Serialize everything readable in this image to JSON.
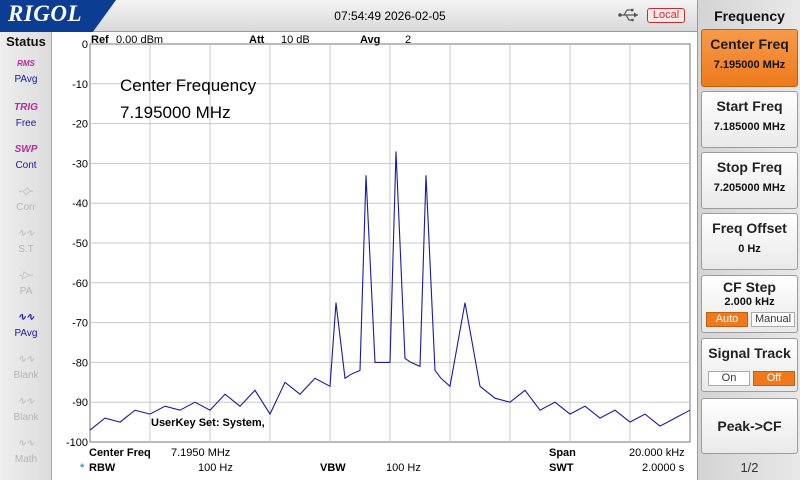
{
  "topbar": {
    "brand": "RIGOL",
    "datetime": "07:54:49 2026-02-05",
    "remote_status": "Local"
  },
  "status_panel": {
    "title": "Status",
    "items": [
      {
        "glyph": "RMS PAvg",
        "label": "PAvg",
        "state": "active"
      },
      {
        "glyph": "TRIG",
        "label": "Free",
        "state": "active"
      },
      {
        "glyph": "SWP",
        "label": "Cont",
        "state": "active"
      },
      {
        "glyph": "corr-icon",
        "label": "Corr",
        "state": "dim"
      },
      {
        "glyph": "st-icon",
        "label": "S.T",
        "state": "dim"
      },
      {
        "glyph": "pa-icon",
        "label": "PA",
        "state": "dim"
      },
      {
        "glyph": "pavg-icon",
        "label": "PAvg",
        "state": "active"
      },
      {
        "glyph": "blank-icon",
        "label": "Blank",
        "state": "dim"
      },
      {
        "glyph": "blank-icon",
        "label": "Blank",
        "state": "dim"
      },
      {
        "glyph": "math-icon",
        "label": "Math",
        "state": "dim"
      }
    ]
  },
  "plot": {
    "ref_label": "Ref",
    "ref_value": "0.00 dBm",
    "att_label": "Att",
    "att_value": "10 dB",
    "avg_label": "Avg",
    "avg_value": "2",
    "overlay_title": "Center Frequency",
    "overlay_value": "7.195000 MHz",
    "userkey_text": "UserKey Set:   System,",
    "bottom": {
      "center_label": "Center Freq",
      "center_value": "7.1950 MHz",
      "span_label": "Span",
      "span_value": "20.000 kHz",
      "rbw_marker": "*",
      "rbw_label": "RBW",
      "rbw_value": "100 Hz",
      "vbw_label": "VBW",
      "vbw_value": "100 Hz",
      "swt_label": "SWT",
      "swt_value": "2.0000 s"
    },
    "trace_color": "#1a1aa0",
    "grid_color": "#c8c8c8"
  },
  "chart_data": {
    "type": "line",
    "title": "",
    "xlabel": "",
    "ylabel": "",
    "xlim": [
      7.185,
      7.205
    ],
    "ylim": [
      -100,
      0
    ],
    "y_ticks": [
      "0",
      "-10",
      "-20",
      "-30",
      "-40",
      "-50",
      "-60",
      "-70",
      "-80",
      "-90",
      "-100"
    ],
    "grid": true,
    "series": [
      {
        "x": [
          7.185,
          7.1855,
          7.186,
          7.1865,
          7.187,
          7.1875,
          7.188,
          7.1885,
          7.189,
          7.1895,
          7.19,
          7.1905,
          7.191,
          7.1915,
          7.192,
          7.1925,
          7.193,
          7.1932,
          7.1935,
          7.1937,
          7.194,
          7.1942,
          7.1945,
          7.1947,
          7.195,
          7.1952,
          7.1955,
          7.1957,
          7.196,
          7.1962,
          7.1965,
          7.1967,
          7.197,
          7.1975,
          7.198,
          7.1985,
          7.199,
          7.1995,
          7.2,
          7.2005,
          7.201,
          7.2015,
          7.202,
          7.2025,
          7.203,
          7.2035,
          7.204,
          7.2045,
          7.205
        ],
        "values": [
          -97,
          -94,
          -95,
          -92,
          -93,
          -91,
          -92,
          -90,
          -92,
          -88,
          -91,
          -87,
          -93,
          -85,
          -88,
          -84,
          -86,
          -65,
          -84,
          -83,
          -82,
          -33,
          -80,
          -80,
          -80,
          -27,
          -79,
          -80,
          -81,
          -33,
          -82,
          -84,
          -86,
          -65,
          -86,
          -89,
          -90,
          -87,
          -92,
          -90,
          -93,
          -91,
          -94,
          -92,
          -95,
          -93,
          -96,
          -94,
          -92
        ]
      }
    ]
  },
  "menu": {
    "title": "Frequency",
    "keys": [
      {
        "label": "Center Freq",
        "value": "7.195000 MHz"
      },
      {
        "label": "Start Freq",
        "value": "7.185000 MHz"
      },
      {
        "label": "Stop Freq",
        "value": "7.205000 MHz"
      },
      {
        "label": "Freq Offset",
        "value": "0 Hz"
      },
      {
        "label": "CF Step",
        "value": "2.000 kHz",
        "opt_a": "Auto",
        "opt_b": "Manual"
      },
      {
        "label": "Signal Track",
        "opt_a": "On",
        "opt_b": "Off"
      },
      {
        "label": "Peak->CF"
      }
    ],
    "page": "1/2",
    "accent_color": "#ee7a1d"
  }
}
